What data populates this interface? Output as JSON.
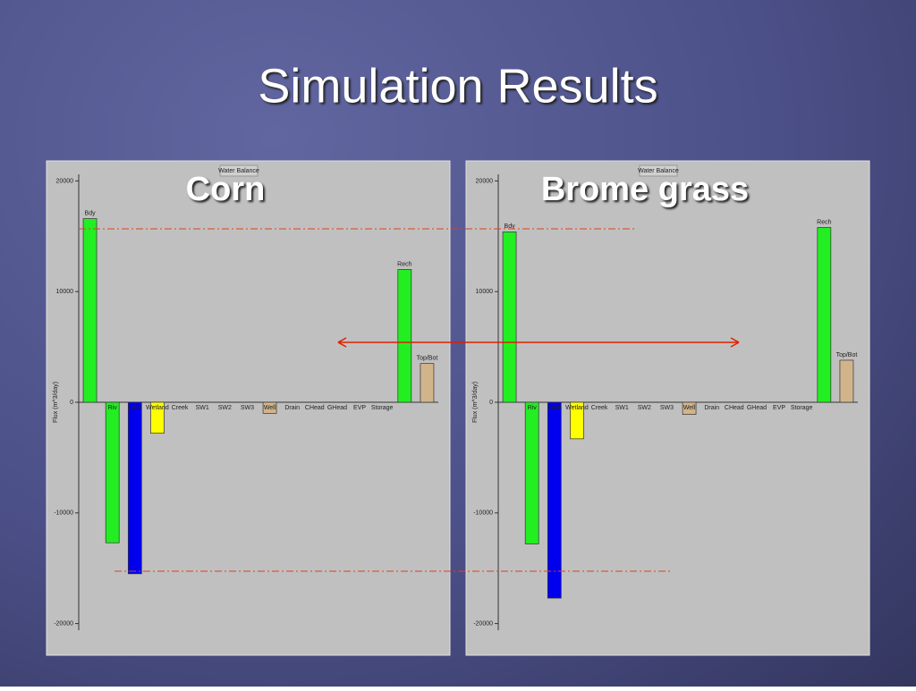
{
  "title": "Simulation Results",
  "chart_data": [
    {
      "type": "bar",
      "heading": "Corn",
      "title": "Water Balance",
      "y_label": "Flux (m^3/day)",
      "categories": [
        "Bdy",
        "Riv",
        "Lake",
        "Wetland",
        "Creek",
        "SW1",
        "SW2",
        "SW3",
        "Well",
        "Drain",
        "CHead",
        "GHead",
        "EVP",
        "Storage",
        "Rech",
        "Top/Bot"
      ],
      "values": [
        16600,
        -12700,
        -15500,
        -2800,
        null,
        null,
        null,
        null,
        -1000,
        null,
        null,
        null,
        null,
        null,
        12000,
        3500
      ],
      "colors": [
        "#22ee22",
        "#22ee22",
        "#0000ee",
        "#ffff00",
        "#999999",
        "#999999",
        "#999999",
        "#999999",
        "#d2b48c",
        "#999999",
        "#999999",
        "#999999",
        "#999999",
        "#999999",
        "#22ee22",
        "#d2b48c"
      ],
      "ylim": [
        -20600,
        20600
      ],
      "yticks": [
        20000,
        10000,
        0,
        -10000,
        -20000
      ]
    },
    {
      "type": "bar",
      "heading": "Brome grass",
      "title": "Water Balance",
      "y_label": "Flux (m^3/day)",
      "categories": [
        "Bdy",
        "Riv",
        "Lake",
        "Wetland",
        "Creek",
        "SW1",
        "SW2",
        "SW3",
        "Well",
        "Drain",
        "CHead",
        "GHead",
        "EVP",
        "Storage",
        "Rech",
        "Top/Bot"
      ],
      "values": [
        15400,
        -12800,
        -17700,
        -3300,
        null,
        null,
        null,
        null,
        -1100,
        null,
        null,
        null,
        null,
        null,
        15800,
        3800
      ],
      "colors": [
        "#22ee22",
        "#22ee22",
        "#0000ee",
        "#ffff00",
        "#999999",
        "#999999",
        "#999999",
        "#999999",
        "#d2b48c",
        "#999999",
        "#999999",
        "#999999",
        "#999999",
        "#999999",
        "#22ee22",
        "#d2b48c"
      ],
      "ylim": [
        -20600,
        20600
      ],
      "yticks": [
        20000,
        10000,
        0,
        -10000,
        -20000
      ]
    }
  ]
}
